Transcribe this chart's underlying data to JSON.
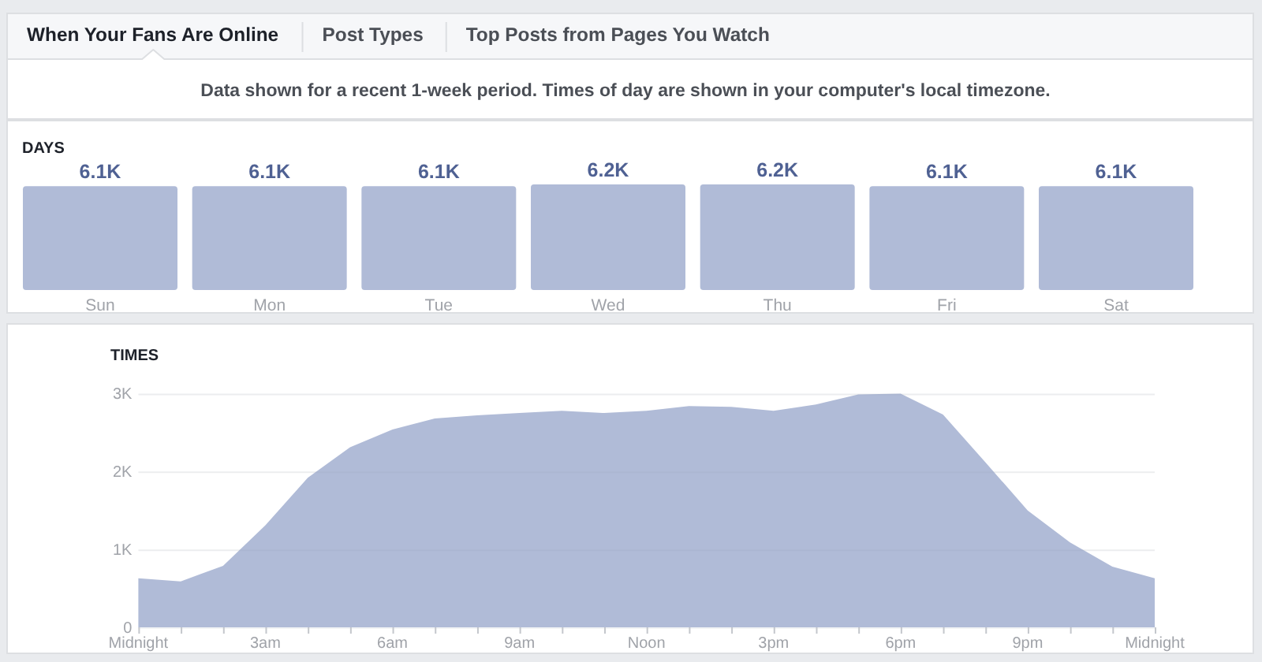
{
  "chart_data": [
    {
      "type": "other",
      "annotations": [
        "When Your Fans Are Online",
        "Post Types",
        "Top Posts from Pages You Watch",
        "Data shown for a recent 1-week period. Times of day are shown in your computer's local timezone."
      ]
    },
    {
      "type": "bar",
      "title": "DAYS",
      "categories": [
        "Sun",
        "Mon",
        "Tue",
        "Wed",
        "Thu",
        "Fri",
        "Sat"
      ],
      "values": [
        6100,
        6100,
        6100,
        6200,
        6200,
        6100,
        6100
      ],
      "value_labels": [
        "6.1K",
        "6.1K",
        "6.1K",
        "6.2K",
        "6.2K",
        "6.1K",
        "6.1K"
      ],
      "color": "#b0bbd7",
      "ylim": [
        0,
        6200
      ],
      "tick_labels": "x"
    },
    {
      "type": "area",
      "title": "TIMES",
      "categories": [
        "Midnight",
        null,
        null,
        "3am",
        null,
        null,
        "6am",
        null,
        null,
        "9am",
        null,
        null,
        "Noon",
        null,
        null,
        "3pm",
        null,
        null,
        "6pm",
        null,
        null,
        "9pm",
        null,
        null,
        "Midnight"
      ],
      "values": [
        630,
        590,
        790,
        1310,
        1920,
        2310,
        2540,
        2680,
        2720,
        2750,
        2780,
        2750,
        2780,
        2840,
        2830,
        2780,
        2860,
        2990,
        3000,
        2730,
        2120,
        1500,
        1090,
        780,
        630
      ],
      "color": "#b0bbd7",
      "ylim": [
        0,
        3000
      ],
      "yticks": [
        0,
        {
          "value": 1000,
          "label": "1K"
        },
        {
          "value": 2000,
          "label": "2K"
        },
        {
          "value": 3000,
          "label": "3K"
        }
      ],
      "grid": "y"
    }
  ]
}
